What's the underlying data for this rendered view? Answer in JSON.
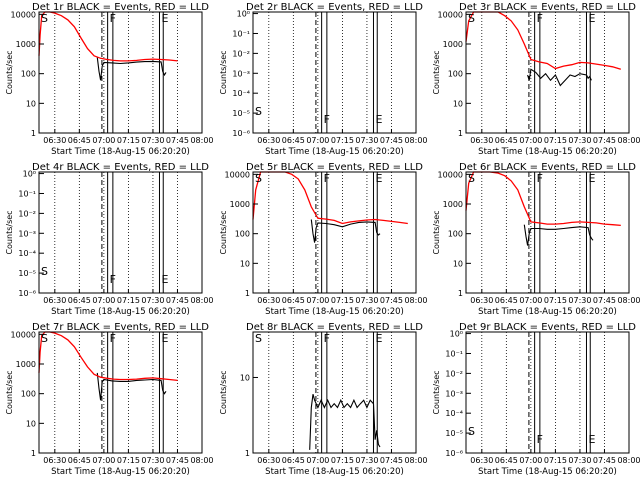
{
  "chart_data": [
    {
      "panel": "1r",
      "type": "line",
      "title": "Det 1r BLACK = Events, RED = LLD",
      "xlabel": "Start Time (18-Aug-15 06:20:20)",
      "ylabel": "Counts/sec",
      "y_scale": "log",
      "y_tick_labels": [
        "1",
        "10",
        "100",
        "1000",
        "10000"
      ],
      "ylim": [
        1,
        12000
      ],
      "x_tick_labels": [
        "06:30",
        "06:45",
        "07:00",
        "07:15",
        "07:30",
        "07:45",
        "08:00"
      ],
      "xlim": [
        "06:20:20",
        "08:00"
      ],
      "flags": [
        "S",
        "F",
        "E"
      ],
      "series": [
        {
          "color": "#000000",
          "x": [
            "06:56",
            "06:57",
            "06:58",
            "06:59",
            "07:00",
            "07:05",
            "07:10",
            "07:15",
            "07:20",
            "07:25",
            "07:30",
            "07:35",
            "07:36",
            "07:37",
            "07:38"
          ],
          "y": [
            350,
            120,
            60,
            180,
            240,
            230,
            220,
            230,
            245,
            255,
            260,
            250,
            120,
            90,
            110
          ]
        },
        {
          "color": "#ff0000",
          "x": [
            "06:20:20",
            "06:21",
            "06:22",
            "06:24",
            "06:27",
            "06:30",
            "06:34",
            "06:38",
            "06:42",
            "06:46",
            "06:50",
            "06:54",
            "06:58",
            "07:02",
            "07:06",
            "07:10",
            "07:15",
            "07:20",
            "07:25",
            "07:30",
            "07:35",
            "07:40",
            "07:45"
          ],
          "y": [
            400,
            2000,
            9000,
            14000,
            12000,
            11000,
            9000,
            6500,
            3800,
            1600,
            700,
            400,
            330,
            300,
            280,
            270,
            270,
            280,
            300,
            310,
            300,
            290,
            270
          ]
        }
      ]
    },
    {
      "panel": "2r",
      "type": "line",
      "title": "Det 2r BLACK = Events, RED = LLD",
      "xlabel": "Start Time (18-Aug-15 06:20:20)",
      "ylabel": "Counts/sec",
      "y_scale": "log",
      "y_tick_labels": [
        "10⁻⁶",
        "10⁻⁵",
        "10⁻⁴",
        "10⁻³",
        "10⁻²",
        "10⁻¹",
        "10⁰"
      ],
      "ylim": [
        1e-06,
        1.2
      ],
      "x_tick_labels": [
        "06:30",
        "06:45",
        "07:00",
        "07:15",
        "07:30",
        "07:45",
        "08:00"
      ],
      "xlim": [
        "06:20:20",
        "08:00"
      ],
      "flags": [
        "S",
        "F",
        "E"
      ],
      "series": []
    },
    {
      "panel": "3r",
      "type": "line",
      "title": "Det 3r BLACK = Events, RED = LLD",
      "xlabel": "Start Time (18-Aug-15 06:20:20)",
      "ylabel": "Counts/sec",
      "y_scale": "log",
      "y_tick_labels": [
        "1",
        "10",
        "100",
        "1000",
        "10000"
      ],
      "ylim": [
        1,
        12000
      ],
      "x_tick_labels": [
        "06:30",
        "06:45",
        "07:00",
        "07:15",
        "07:30",
        "07:45",
        "08:00"
      ],
      "xlim": [
        "06:20:20",
        "08:00"
      ],
      "flags": [
        "S",
        "F",
        "E"
      ],
      "series": [
        {
          "color": "#000000",
          "x": [
            "06:58",
            "06:59",
            "07:00",
            "07:03",
            "07:06",
            "07:09",
            "07:12",
            "07:15",
            "07:18",
            "07:21",
            "07:24",
            "07:27",
            "07:30",
            "07:34",
            "07:35",
            "07:36",
            "07:37"
          ],
          "y": [
            90,
            60,
            140,
            110,
            70,
            100,
            60,
            90,
            40,
            60,
            90,
            80,
            100,
            90,
            70,
            80,
            60
          ]
        },
        {
          "color": "#ff0000",
          "x": [
            "06:20:20",
            "06:22",
            "06:25",
            "06:28",
            "06:31",
            "06:35",
            "06:40",
            "06:44",
            "06:48",
            "06:52",
            "06:56",
            "07:00",
            "07:05",
            "07:10",
            "07:15",
            "07:20",
            "07:25",
            "07:30",
            "07:35",
            "07:40",
            "07:45",
            "07:50",
            "07:55"
          ],
          "y": [
            1200,
            6000,
            15000,
            16000,
            15000,
            14000,
            12000,
            9000,
            6000,
            3000,
            1000,
            300,
            250,
            220,
            150,
            180,
            200,
            240,
            230,
            210,
            190,
            170,
            140
          ]
        }
      ]
    },
    {
      "panel": "4r",
      "type": "line",
      "title": "Det 4r BLACK = Events, RED = LLD",
      "xlabel": "Start Time (18-Aug-15 06:20:20)",
      "ylabel": "Counts/sec",
      "y_scale": "log",
      "y_tick_labels": [
        "10⁻⁶",
        "10⁻⁵",
        "10⁻⁴",
        "10⁻³",
        "10⁻²",
        "10⁻¹",
        "10⁰"
      ],
      "ylim": [
        1e-06,
        1.2
      ],
      "x_tick_labels": [
        "06:30",
        "06:45",
        "07:00",
        "07:15",
        "07:30",
        "07:45",
        "08:00"
      ],
      "xlim": [
        "06:20:20",
        "08:00"
      ],
      "flags": [
        "S",
        "F",
        "E"
      ],
      "series": []
    },
    {
      "panel": "5r",
      "type": "line",
      "title": "Det 5r BLACK = Events, RED = LLD",
      "xlabel": "Start Time (18-Aug-15 06:20:20)",
      "ylabel": "Counts/sec",
      "y_scale": "log",
      "y_tick_labels": [
        "1",
        "10",
        "100",
        "1000",
        "10000"
      ],
      "ylim": [
        1,
        12000
      ],
      "x_tick_labels": [
        "06:30",
        "06:45",
        "07:00",
        "07:15",
        "07:30",
        "07:45",
        "08:00"
      ],
      "xlim": [
        "06:20:20",
        "08:00"
      ],
      "flags": [
        "S",
        "F",
        "E"
      ],
      "series": [
        {
          "color": "#000000",
          "x": [
            "06:56",
            "06:57",
            "06:58",
            "06:59",
            "07:00",
            "07:05",
            "07:10",
            "07:15",
            "07:20",
            "07:25",
            "07:30",
            "07:35",
            "07:36",
            "07:37",
            "07:38"
          ],
          "y": [
            300,
            100,
            50,
            160,
            230,
            220,
            200,
            170,
            210,
            240,
            250,
            240,
            110,
            90,
            100
          ]
        },
        {
          "color": "#ff0000",
          "x": [
            "06:20:20",
            "06:22",
            "06:25",
            "06:28",
            "06:31",
            "06:35",
            "06:40",
            "06:44",
            "06:48",
            "06:52",
            "06:56",
            "07:00",
            "07:05",
            "07:10",
            "07:15",
            "07:20",
            "07:25",
            "07:30",
            "07:35",
            "07:40",
            "07:45",
            "07:50",
            "07:55"
          ],
          "y": [
            300,
            3000,
            15000,
            16000,
            15000,
            14000,
            12000,
            10000,
            7000,
            3000,
            800,
            330,
            310,
            280,
            220,
            250,
            270,
            290,
            300,
            280,
            260,
            240,
            220
          ]
        }
      ]
    },
    {
      "panel": "6r",
      "type": "line",
      "title": "Det 6r BLACK = Events, RED = LLD",
      "xlabel": "Start Time (18-Aug-15 06:20:20)",
      "ylabel": "Counts/sec",
      "y_scale": "log",
      "y_tick_labels": [
        "1",
        "10",
        "100",
        "1000",
        "10000"
      ],
      "ylim": [
        1,
        12000
      ],
      "x_tick_labels": [
        "06:30",
        "06:45",
        "07:00",
        "07:15",
        "07:30",
        "07:45",
        "08:00"
      ],
      "xlim": [
        "06:20:20",
        "08:00"
      ],
      "flags": [
        "S",
        "F",
        "E"
      ],
      "series": [
        {
          "color": "#000000",
          "x": [
            "06:56",
            "06:57",
            "06:58",
            "06:59",
            "07:00",
            "07:05",
            "07:10",
            "07:15",
            "07:20",
            "07:25",
            "07:30",
            "07:35",
            "07:36",
            "07:37",
            "07:38"
          ],
          "y": [
            200,
            80,
            40,
            100,
            150,
            150,
            140,
            140,
            150,
            160,
            170,
            160,
            90,
            70,
            60
          ]
        },
        {
          "color": "#ff0000",
          "x": [
            "06:20:20",
            "06:22",
            "06:25",
            "06:28",
            "06:31",
            "06:35",
            "06:40",
            "06:44",
            "06:48",
            "06:52",
            "06:56",
            "07:00",
            "07:05",
            "07:10",
            "07:15",
            "07:20",
            "07:25",
            "07:30",
            "07:35",
            "07:40",
            "07:45",
            "07:50",
            "07:55"
          ],
          "y": [
            600,
            5000,
            15000,
            16000,
            15000,
            13000,
            11000,
            9000,
            6000,
            3000,
            800,
            250,
            230,
            210,
            210,
            220,
            240,
            250,
            240,
            230,
            210,
            200,
            190
          ]
        }
      ]
    },
    {
      "panel": "7r",
      "type": "line",
      "title": "Det 7r BLACK = Events, RED = LLD",
      "xlabel": "Start Time (18-Aug-15 06:20:20)",
      "ylabel": "Counts/sec",
      "y_scale": "log",
      "y_tick_labels": [
        "1",
        "10",
        "100",
        "1000",
        "10000"
      ],
      "ylim": [
        1,
        12000
      ],
      "x_tick_labels": [
        "06:30",
        "06:45",
        "07:00",
        "07:15",
        "07:30",
        "07:45",
        "08:00"
      ],
      "xlim": [
        "06:20:20",
        "08:00"
      ],
      "flags": [
        "S",
        "F",
        "E"
      ],
      "series": [
        {
          "color": "#000000",
          "x": [
            "06:56",
            "06:57",
            "06:58",
            "06:59",
            "07:00",
            "07:05",
            "07:10",
            "07:15",
            "07:20",
            "07:25",
            "07:30",
            "07:35",
            "07:36",
            "07:37",
            "07:38"
          ],
          "y": [
            500,
            150,
            60,
            250,
            300,
            270,
            260,
            260,
            280,
            290,
            300,
            280,
            130,
            100,
            120
          ]
        },
        {
          "color": "#ff0000",
          "x": [
            "06:20:20",
            "06:21",
            "06:22",
            "06:24",
            "06:27",
            "06:30",
            "06:34",
            "06:38",
            "06:42",
            "06:46",
            "06:50",
            "06:54",
            "06:58",
            "07:02",
            "07:06",
            "07:10",
            "07:15",
            "07:20",
            "07:25",
            "07:30",
            "07:35",
            "07:40",
            "07:45"
          ],
          "y": [
            500,
            2500,
            9000,
            14000,
            12000,
            11000,
            9000,
            6500,
            3800,
            1700,
            800,
            450,
            360,
            330,
            310,
            300,
            300,
            310,
            330,
            340,
            320,
            300,
            280
          ]
        }
      ]
    },
    {
      "panel": "8r",
      "type": "line",
      "title": "Det 8r BLACK = Events, RED = LLD",
      "xlabel": "Start Time (18-Aug-15 06:20:20)",
      "ylabel": "Counts/sec",
      "y_scale": "log",
      "y_tick_labels": [
        "1",
        "10"
      ],
      "ylim": [
        1,
        40
      ],
      "x_tick_labels": [
        "06:30",
        "06:45",
        "07:00",
        "07:15",
        "07:30",
        "07:45",
        "08:00"
      ],
      "xlim": [
        "06:20:20",
        "08:00"
      ],
      "flags": [
        "S",
        "F",
        "E"
      ],
      "series": [
        {
          "color": "#000000",
          "x": [
            "06:55",
            "06:56",
            "06:57",
            "06:58",
            "07:00",
            "07:02",
            "07:04",
            "07:06",
            "07:08",
            "07:10",
            "07:12",
            "07:14",
            "07:16",
            "07:18",
            "07:20",
            "07:22",
            "07:24",
            "07:26",
            "07:28",
            "07:30",
            "07:32",
            "07:34",
            "07:35",
            "07:36",
            "07:37",
            "07:38"
          ],
          "y": [
            1.1,
            4,
            6,
            5,
            4,
            5,
            4,
            5,
            4,
            4.5,
            4,
            5,
            4,
            4.5,
            4,
            5,
            4,
            4.5,
            5,
            4,
            5,
            4.5,
            1.5,
            2,
            1.3,
            1.2
          ]
        }
      ]
    },
    {
      "panel": "9r",
      "type": "line",
      "title": "Det 9r BLACK = Events, RED = LLD",
      "xlabel": "Start Time (18-Aug-15 06:20:20)",
      "ylabel": "Counts/sec",
      "y_scale": "log",
      "y_tick_labels": [
        "10⁻⁶",
        "10⁻⁵",
        "10⁻⁴",
        "10⁻³",
        "10⁻²",
        "10⁻¹",
        "10⁰"
      ],
      "ylim": [
        1e-06,
        1.2
      ],
      "x_tick_labels": [
        "06:30",
        "06:45",
        "07:00",
        "07:15",
        "07:30",
        "07:45",
        "08:00"
      ],
      "xlim": [
        "06:20:20",
        "08:00"
      ],
      "flags": [
        "S",
        "F",
        "E"
      ],
      "series": []
    }
  ]
}
